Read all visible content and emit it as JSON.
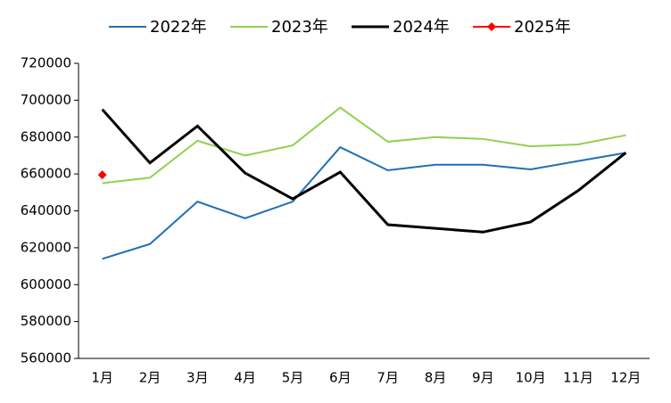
{
  "chart_data": {
    "type": "line",
    "categories": [
      "1月",
      "2月",
      "3月",
      "4月",
      "5月",
      "6月",
      "7月",
      "8月",
      "9月",
      "10月",
      "11月",
      "12月"
    ],
    "series": [
      {
        "name": "2022年",
        "color": "#1f6fb5",
        "values": [
          614000,
          622000,
          645000,
          636000,
          645000,
          674500,
          662000,
          665000,
          665000,
          662500,
          667000,
          671500
        ]
      },
      {
        "name": "2023年",
        "color": "#92d050",
        "values": [
          655000,
          658000,
          678000,
          670000,
          675500,
          696000,
          677500,
          680000,
          679000,
          675000,
          676000,
          681000
        ]
      },
      {
        "name": "2024年",
        "color": "#000000",
        "values": [
          695000,
          666000,
          686000,
          660500,
          646500,
          661000,
          632500,
          630500,
          628500,
          634000,
          651000,
          671500
        ]
      },
      {
        "name": "2025年",
        "color": "#ff0000",
        "marker": "diamond",
        "values": [
          659500,
          null,
          null,
          null,
          null,
          null,
          null,
          null,
          null,
          null,
          null,
          null
        ]
      }
    ],
    "ylim": [
      560000,
      720000
    ],
    "yticks": [
      560000,
      580000,
      600000,
      620000,
      640000,
      660000,
      680000,
      700000,
      720000
    ],
    "legend": "top"
  }
}
